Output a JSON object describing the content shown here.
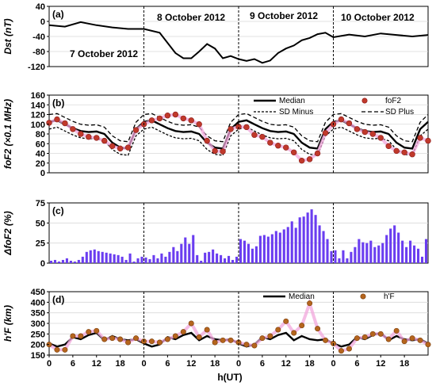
{
  "chart_data": [
    {
      "type": "line",
      "panel_label": "(a)",
      "ylabel": "Dst (nT)",
      "ylim": [
        -120,
        40
      ],
      "yticks": [
        "40",
        "0",
        "-40",
        "-80",
        "-120"
      ],
      "day_labels": [
        "7 October 2012",
        "8 October 2012",
        "9 October 2012",
        "10 October 2012"
      ],
      "x_hours": [
        0,
        4,
        8,
        12,
        16,
        20,
        24,
        28,
        32,
        34,
        36,
        38,
        40,
        42,
        44,
        46,
        48,
        50,
        52,
        54,
        56,
        58,
        60,
        62,
        64,
        66,
        68,
        70,
        72,
        76,
        80,
        84,
        88,
        92,
        96
      ],
      "series": [
        {
          "values": [
            -10,
            -14,
            -2,
            -10,
            -16,
            -20,
            -20,
            -30,
            -84,
            -98,
            -98,
            -80,
            -60,
            -72,
            -98,
            -92,
            -100,
            -105,
            -100,
            -110,
            -104,
            -84,
            -72,
            -64,
            -50,
            -44,
            -34,
            -30,
            -42,
            -35,
            -40,
            -32,
            -36,
            -40,
            -36
          ]
        }
      ]
    },
    {
      "type": "line",
      "panel_label": "(b)",
      "ylabel": "foF2 (×0.1 MHz)",
      "ylim": [
        0,
        160
      ],
      "yticks": [
        "160",
        "140",
        "120",
        "100",
        "80",
        "60",
        "40",
        "20",
        "0"
      ],
      "legend": [
        "Median",
        "foF2",
        "SD Minus",
        "SD Plus"
      ],
      "x_hours": [
        0,
        2,
        4,
        6,
        8,
        10,
        12,
        14,
        16,
        18,
        20,
        22,
        24,
        26,
        28,
        30,
        32,
        34,
        36,
        38,
        40,
        42,
        44,
        46,
        48,
        50,
        52,
        54,
        56,
        58,
        60,
        62,
        64,
        66,
        68,
        70,
        72,
        74,
        76,
        78,
        80,
        82,
        84,
        86,
        88,
        90,
        92,
        94,
        96
      ],
      "series": [
        {
          "name": "Median",
          "values": [
            105,
            108,
            100,
            92,
            86,
            84,
            85,
            80,
            62,
            52,
            50,
            90,
            105,
            108,
            100,
            92,
            86,
            84,
            85,
            80,
            62,
            52,
            50,
            90,
            105,
            108,
            100,
            92,
            86,
            84,
            85,
            80,
            62,
            52,
            50,
            90,
            105,
            108,
            100,
            92,
            86,
            84,
            85,
            80,
            62,
            52,
            50,
            90,
            105
          ]
        },
        {
          "name": "SD Plus",
          "values": [
            120,
            122,
            114,
            106,
            100,
            98,
            99,
            94,
            76,
            66,
            64,
            104,
            120,
            122,
            114,
            106,
            100,
            98,
            99,
            94,
            76,
            66,
            64,
            104,
            120,
            122,
            114,
            106,
            100,
            98,
            99,
            94,
            76,
            66,
            64,
            104,
            120,
            122,
            114,
            106,
            100,
            98,
            99,
            94,
            76,
            66,
            64,
            104,
            120
          ]
        },
        {
          "name": "SD Minus",
          "values": [
            90,
            94,
            86,
            78,
            72,
            70,
            71,
            66,
            48,
            38,
            36,
            76,
            90,
            94,
            86,
            78,
            72,
            70,
            71,
            66,
            48,
            38,
            36,
            76,
            90,
            94,
            86,
            78,
            72,
            70,
            71,
            66,
            48,
            38,
            36,
            76,
            90,
            94,
            86,
            78,
            72,
            70,
            71,
            66,
            48,
            38,
            36,
            76,
            90
          ]
        },
        {
          "name": "foF2",
          "values": [
            103,
            110,
            102,
            90,
            80,
            74,
            72,
            66,
            55,
            50,
            52,
            88,
            100,
            108,
            112,
            118,
            120,
            112,
            108,
            100,
            66,
            45,
            44,
            90,
            95,
            94,
            78,
            74,
            62,
            56,
            52,
            42,
            25,
            28,
            40,
            82,
            100,
            110,
            102,
            90,
            84,
            80,
            72,
            55,
            45,
            42,
            38,
            72,
            66
          ]
        }
      ]
    },
    {
      "type": "bar",
      "panel_label": "(c)",
      "ylabel": "ΔfoF2 (%)",
      "ylim": [
        0,
        75
      ],
      "yticks": [
        "75",
        "50",
        "25",
        "0"
      ],
      "x_hours": [
        0,
        1,
        2,
        3,
        4,
        5,
        6,
        7,
        8,
        9,
        10,
        11,
        12,
        13,
        14,
        15,
        16,
        17,
        18,
        19,
        20,
        21,
        22,
        23,
        24,
        25,
        26,
        27,
        28,
        29,
        30,
        31,
        32,
        33,
        34,
        35,
        36,
        37,
        38,
        39,
        40,
        41,
        42,
        43,
        44,
        45,
        46,
        47,
        48,
        49,
        50,
        51,
        52,
        53,
        54,
        55,
        56,
        57,
        58,
        59,
        60,
        61,
        62,
        63,
        64,
        65,
        66,
        67,
        68,
        69,
        70,
        71,
        72,
        73,
        74,
        75,
        76,
        77,
        78,
        79,
        80,
        81,
        82,
        83,
        84,
        85,
        86,
        87,
        88,
        89,
        90,
        91,
        92,
        93,
        94,
        95
      ],
      "values": [
        3,
        4,
        2,
        4,
        6,
        3,
        2,
        4,
        8,
        14,
        16,
        17,
        15,
        14,
        13,
        12,
        11,
        10,
        8,
        4,
        12,
        2,
        6,
        8,
        7,
        5,
        10,
        6,
        12,
        8,
        14,
        20,
        15,
        24,
        32,
        24,
        35,
        10,
        3,
        13,
        14,
        17,
        12,
        10,
        6,
        9,
        4,
        8,
        30,
        28,
        24,
        18,
        21,
        34,
        35,
        33,
        36,
        40,
        38,
        42,
        45,
        52,
        44,
        57,
        58,
        63,
        67,
        60,
        47,
        40,
        30,
        15,
        16,
        6,
        16,
        6,
        14,
        20,
        30,
        26,
        25,
        28,
        20,
        22,
        25,
        35,
        43,
        47,
        38,
        28,
        20,
        28,
        22,
        18,
        8,
        30
      ]
    },
    {
      "type": "line",
      "panel_label": "(d)",
      "ylabel": "h'F (km)",
      "ylim": [
        150,
        450
      ],
      "yticks": [
        "450",
        "400",
        "350",
        "300",
        "250",
        "200",
        "150"
      ],
      "legend": [
        "Median",
        "h'F"
      ],
      "xlabel": "h(UT)",
      "xticks": [
        "0",
        "6",
        "12",
        "18",
        "0",
        "6",
        "12",
        "18",
        "0",
        "6",
        "12",
        "18",
        "0",
        "6",
        "12",
        "18"
      ],
      "x_hours": [
        0,
        2,
        4,
        6,
        8,
        10,
        12,
        14,
        16,
        18,
        20,
        22,
        24,
        26,
        28,
        30,
        32,
        34,
        36,
        38,
        40,
        42,
        44,
        46,
        48,
        50,
        52,
        54,
        56,
        58,
        60,
        62,
        64,
        66,
        68,
        70,
        72,
        74,
        76,
        78,
        80,
        82,
        84,
        86,
        88,
        90,
        92,
        94,
        96
      ],
      "series": [
        {
          "name": "Median",
          "values": [
            205,
            190,
            200,
            235,
            225,
            245,
            255,
            220,
            240,
            225,
            220,
            225,
            205,
            190,
            200,
            235,
            225,
            245,
            255,
            220,
            240,
            225,
            220,
            225,
            205,
            190,
            200,
            235,
            225,
            245,
            255,
            220,
            240,
            225,
            220,
            225,
            205,
            190,
            200,
            235,
            225,
            245,
            255,
            220,
            240,
            225,
            220,
            225,
            205
          ]
        },
        {
          "name": "h'F",
          "values": [
            200,
            175,
            175,
            240,
            240,
            260,
            265,
            225,
            230,
            225,
            210,
            230,
            215,
            215,
            210,
            225,
            240,
            260,
            300,
            235,
            270,
            210,
            220,
            220,
            210,
            200,
            195,
            230,
            240,
            270,
            310,
            255,
            290,
            395,
            275,
            220,
            205,
            170,
            180,
            230,
            235,
            250,
            250,
            225,
            265,
            215,
            230,
            220,
            200
          ]
        }
      ]
    }
  ]
}
